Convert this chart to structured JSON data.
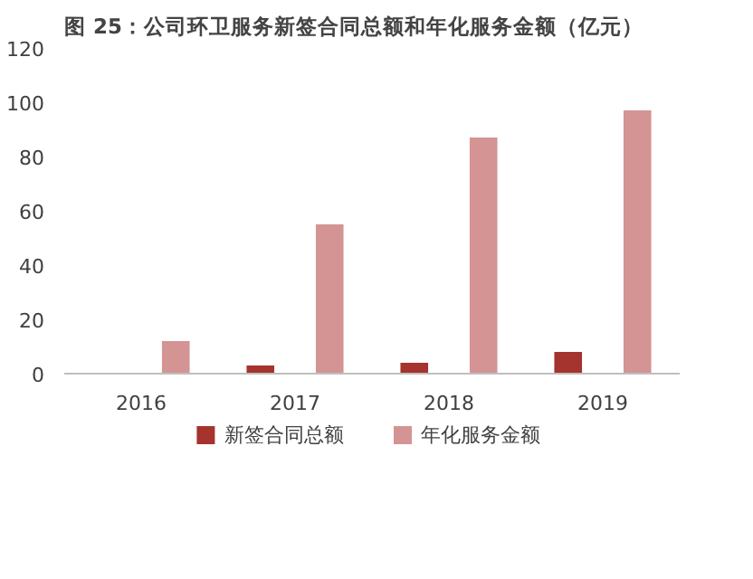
{
  "chart_data": {
    "type": "bar",
    "title": "图 25：公司环卫服务新签合同总额和年化服务金额（亿元）",
    "categories": [
      "2016",
      "2017",
      "2018",
      "2019"
    ],
    "series": [
      {
        "name": "新签合同总额",
        "color": "#a5332e",
        "values": [
          null,
          3,
          4,
          8
        ]
      },
      {
        "name": "年化服务金额",
        "color": "#d49494",
        "values": [
          12,
          55,
          87,
          97
        ]
      }
    ],
    "ylim": [
      0,
      120
    ],
    "yticks": [
      0,
      20,
      40,
      60,
      80,
      100,
      120
    ],
    "grid": false,
    "legend": "bottom"
  }
}
